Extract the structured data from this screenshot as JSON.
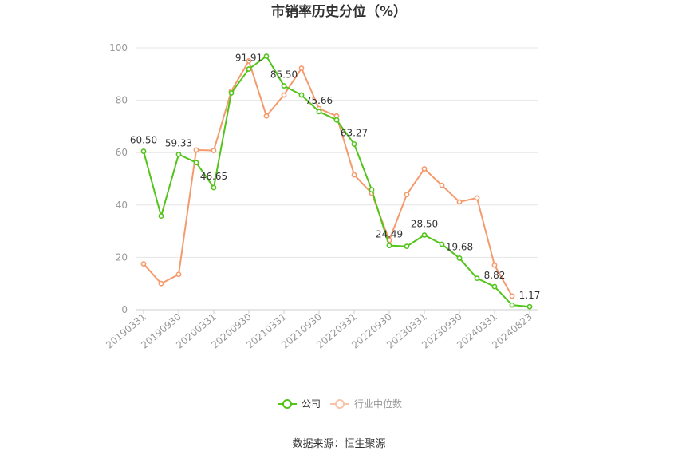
{
  "chart_data": {
    "type": "line",
    "title": "市销率历史分位（%）",
    "source": "数据来源：恒生聚源",
    "ylim": [
      0,
      100
    ],
    "yticks": [
      0,
      20,
      40,
      60,
      80,
      100
    ],
    "xtick_labels": [
      "20190331",
      "20190930",
      "20200331",
      "20200930",
      "20210331",
      "20210930",
      "20220331",
      "20220930",
      "20230331",
      "20230930",
      "20240331",
      "20240823"
    ],
    "x": [
      "20190331",
      "20190630",
      "20190930",
      "20191231",
      "20200331",
      "20200630",
      "20200930",
      "20201231",
      "20210331",
      "20210630",
      "20210930",
      "20211231",
      "20220331",
      "20220630",
      "20220930",
      "20221231",
      "20230331",
      "20230630",
      "20230930",
      "20231231",
      "20240331",
      "20240630",
      "20240823"
    ],
    "grid": true,
    "legend_position": "bottom",
    "series": [
      {
        "name": "公司",
        "color": "#52c41a",
        "values": [
          60.5,
          35.8,
          59.33,
          56.2,
          46.65,
          82.8,
          91.91,
          96.8,
          85.5,
          82.0,
          75.66,
          72.5,
          63.27,
          45.8,
          24.49,
          24.2,
          28.5,
          25.0,
          19.68,
          12.0,
          8.82,
          1.8,
          1.17
        ],
        "labels": {
          "0": "60.50",
          "2": "59.33",
          "4": "46.65",
          "6": "91.91",
          "8": "85.50",
          "10": "75.66",
          "12": "63.27",
          "14": "24.49",
          "16": "28.50",
          "18": "19.68",
          "20": "8.82",
          "22": "1.17"
        }
      },
      {
        "name": "行业中位数",
        "color": "#f59a6d",
        "values": [
          17.5,
          10.0,
          13.5,
          61.0,
          60.8,
          83.5,
          95.0,
          74.0,
          82.0,
          92.2,
          76.8,
          74.0,
          51.5,
          44.5,
          26.5,
          44.0,
          53.8,
          47.5,
          41.2,
          42.7,
          17.0,
          5.2,
          null
        ]
      }
    ]
  }
}
